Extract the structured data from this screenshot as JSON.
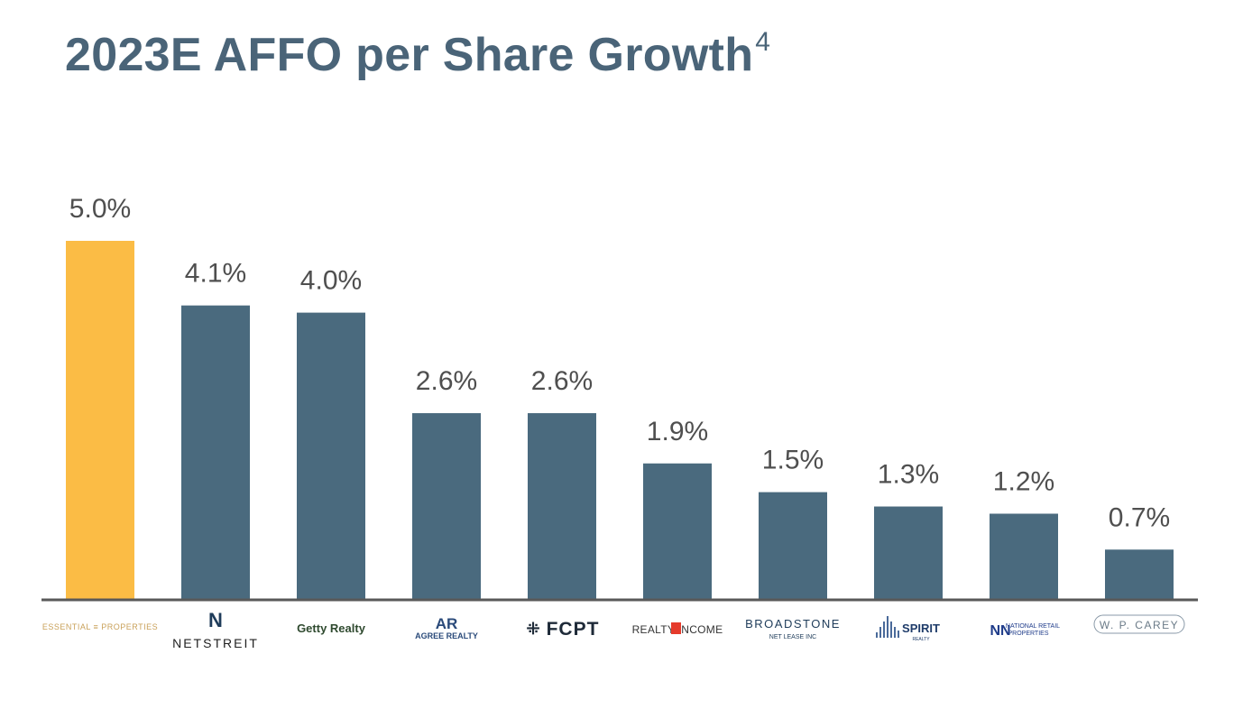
{
  "title": {
    "text": "2023E AFFO per Share Growth",
    "footnote": "4"
  },
  "colors": {
    "highlight": "#fbbc45",
    "bar": "#4a6a7e",
    "axis": "#595959",
    "title": "#4a6478",
    "label": "#4f4f4f"
  },
  "chart_data": {
    "type": "bar",
    "categories": [
      "Essential Properties",
      "NETSTREIT",
      "Getty Realty",
      "Agree Realty",
      "FCPT",
      "Realty Income",
      "Broadstone Net Lease",
      "Spirit Realty",
      "National Retail Properties",
      "W. P. Carey"
    ],
    "values": [
      5.0,
      4.1,
      4.0,
      2.6,
      2.6,
      1.9,
      1.5,
      1.3,
      1.2,
      0.7
    ],
    "value_labels": [
      "5.0%",
      "4.1%",
      "4.0%",
      "2.6%",
      "2.6%",
      "1.9%",
      "1.5%",
      "1.3%",
      "1.2%",
      "0.7%"
    ],
    "highlight_index": 0,
    "ylim": [
      0,
      5.0
    ],
    "grid": false,
    "legend": "none",
    "logos": [
      {
        "name": "essential-properties-logo",
        "text": "ESSENTIAL ≡ PROPERTIES"
      },
      {
        "name": "netstreit-logo",
        "mark": "N",
        "text": "NETSTREIT"
      },
      {
        "name": "getty-realty-logo",
        "text": "Getty Realty"
      },
      {
        "name": "agree-realty-logo",
        "mark": "AR",
        "text": "AGREE REALTY"
      },
      {
        "name": "fcpt-logo",
        "mark": "⁜",
        "text": "FCPT"
      },
      {
        "name": "realty-income-logo",
        "text": "REALTY INCOME"
      },
      {
        "name": "broadstone-logo",
        "text": "BROADSTONE",
        "sub": "NET LEASE INC"
      },
      {
        "name": "spirit-realty-logo",
        "text": "SPIRIT",
        "sub": "REALTY"
      },
      {
        "name": "national-retail-properties-logo",
        "mark": "NN",
        "text": "NATIONAL RETAIL",
        "sub": "PROPERTIES"
      },
      {
        "name": "wp-carey-logo",
        "text": "W. P. CAREY"
      }
    ]
  }
}
